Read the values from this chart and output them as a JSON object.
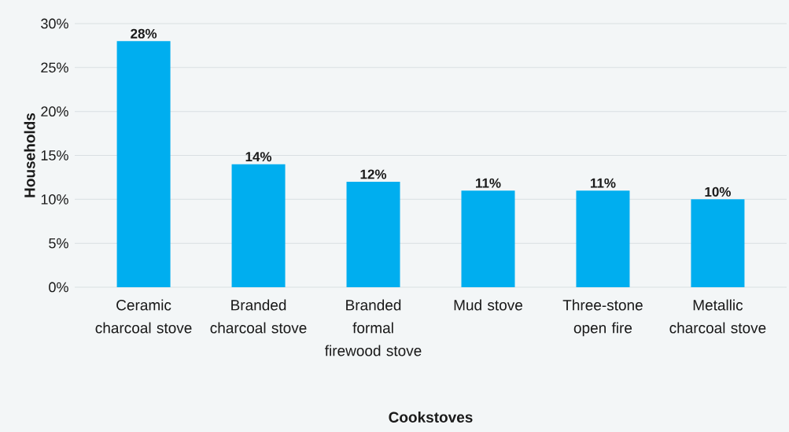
{
  "chart_data": {
    "type": "bar",
    "xlabel": "Cookstoves",
    "ylabel": "Households",
    "categories": [
      "Ceramic charcoal stove",
      "Branded charcoal stove",
      "Branded formal firewood stove",
      "Mud stove",
      "Three-stone open fire",
      "Metallic charcoal stove"
    ],
    "values": [
      28,
      14,
      12,
      11,
      11,
      10
    ],
    "value_labels": [
      "28%",
      "14%",
      "12%",
      "11%",
      "11%",
      "10%"
    ],
    "color": "#00aeef",
    "ylim": [
      0,
      30
    ],
    "yticks": [
      {
        "value": 0,
        "label": "0%"
      },
      {
        "value": 5,
        "label": "5%"
      },
      {
        "value": 10,
        "label": "10%"
      },
      {
        "value": 15,
        "label": "15%"
      },
      {
        "value": 20,
        "label": "20%"
      },
      {
        "value": 25,
        "label": "25%"
      },
      {
        "value": 30,
        "label": "30%"
      }
    ],
    "grid": "y"
  }
}
